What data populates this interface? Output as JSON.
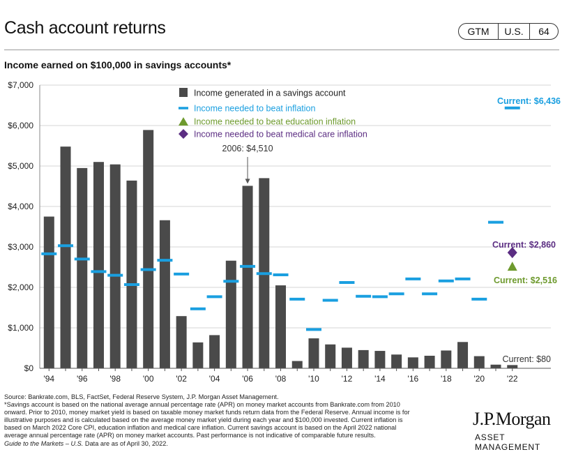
{
  "header": {
    "title": "Cash account returns",
    "badge": {
      "market": "GTM",
      "region": "U.S.",
      "page": "64"
    }
  },
  "chart_data": {
    "type": "bar",
    "title": "Income earned on $100,000 in savings accounts*",
    "years": [
      1994,
      1995,
      1996,
      1997,
      1998,
      1999,
      2000,
      2001,
      2002,
      2003,
      2004,
      2005,
      2006,
      2007,
      2008,
      2009,
      2010,
      2011,
      2012,
      2013,
      2014,
      2015,
      2016,
      2017,
      2018,
      2019,
      2020,
      2021,
      2022
    ],
    "x_tick_labels": [
      "'94",
      "'96",
      "'98",
      "'00",
      "'02",
      "'04",
      "'06",
      "'08",
      "'10",
      "'12",
      "'14",
      "'16",
      "'18",
      "'20",
      "'22"
    ],
    "y_tick_labels": [
      "$0",
      "$1,000",
      "$2,000",
      "$3,000",
      "$4,000",
      "$5,000",
      "$6,000",
      "$7,000"
    ],
    "ylim": [
      0,
      7000
    ],
    "grid": true,
    "legend_position": "top-center",
    "series": [
      {
        "name": "Income generated in a savings account",
        "type": "bar",
        "color": "#4a4a4a",
        "values": [
          3750,
          5480,
          4950,
          5100,
          5040,
          4640,
          5890,
          3660,
          1290,
          640,
          820,
          2660,
          4510,
          4700,
          2050,
          180,
          740,
          590,
          510,
          450,
          430,
          340,
          270,
          310,
          440,
          650,
          300,
          90,
          80
        ]
      },
      {
        "name": "Income needed to beat inflation",
        "type": "dash",
        "color": "#1a9fe0",
        "values": [
          2830,
          3030,
          2700,
          2390,
          2300,
          2070,
          2440,
          2670,
          2330,
          1470,
          1770,
          2150,
          2520,
          2340,
          2310,
          1710,
          960,
          1680,
          2120,
          1780,
          1770,
          1840,
          2210,
          1840,
          2160,
          2210,
          1710,
          3610,
          6436
        ]
      },
      {
        "name": "Income needed to beat education inflation",
        "type": "marker",
        "shape": "triangle",
        "color": "#6e9a2e",
        "points": [
          {
            "x": 2022,
            "y": 2516
          }
        ]
      },
      {
        "name": "Income needed to beat medical care inflation",
        "type": "marker",
        "shape": "diamond",
        "color": "#5b2d82",
        "points": [
          {
            "x": 2022,
            "y": 2860
          }
        ]
      }
    ],
    "annotations": [
      {
        "text": "2006: $4,510",
        "x": 2006,
        "y": 4510,
        "arrow": true
      },
      {
        "text": "Current: $6,436",
        "x": 2022,
        "y": 6436,
        "color": "#1a9fe0"
      },
      {
        "text": "Current: $2,860",
        "x": 2022,
        "y": 2860,
        "color": "#5b2d82"
      },
      {
        "text": "Current: $2,516",
        "x": 2022,
        "y": 2516,
        "color": "#6e9a2e"
      },
      {
        "text": "Current: $80",
        "x": 2022,
        "y": 80,
        "color": "#4a4a4a"
      }
    ]
  },
  "footnotes": {
    "lines": [
      "Source: Bankrate.com, BLS, FactSet, Federal Reserve System, J.P. Morgan Asset Management.",
      "*Savings account is based on the national average annual percentage rate (APR) on money market accounts from Bankrate.com from 2010",
      "onward. Prior to 2010, money market yield is based on taxable money market funds return data from the Federal Reserve. Annual income is for",
      "illustrative purposes and is calculated based on the average money market yield during each year and $100,000 invested. Current inflation is",
      "based on March 2022 Core CPI, education inflation and medical care inflation. Current savings account is based on the April 2022 national",
      "average annual percentage rate (APR) on money market accounts. Past performance is not indicative of comparable future results."
    ],
    "guide_title": "Guide to the Markets – U.S.",
    "guide_date": " Data are as of April 30, 2022."
  },
  "brand": {
    "logo": "J.P.Morgan",
    "subtitle": "ASSET MANAGEMENT"
  }
}
